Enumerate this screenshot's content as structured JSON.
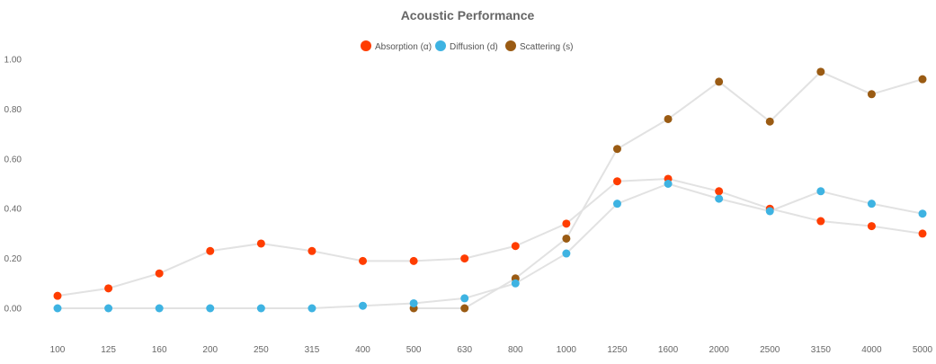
{
  "chart_data": {
    "type": "line",
    "title": "Acoustic Performance",
    "xlabel": "",
    "ylabel": "",
    "categories": [
      "100",
      "125",
      "160",
      "200",
      "250",
      "315",
      "400",
      "500",
      "630",
      "800",
      "1000",
      "1250",
      "1600",
      "2000",
      "2500",
      "3150",
      "4000",
      "5000"
    ],
    "ylim": [
      -0.1,
      1.05
    ],
    "yticks": [
      0.0,
      0.2,
      0.4,
      0.6,
      0.8,
      1.0
    ],
    "ytick_labels": [
      "0.00",
      "0.20",
      "0.40",
      "0.60",
      "0.80",
      "1.00"
    ],
    "legend_position": "top-center",
    "grid": false,
    "line_color": "#e2e2e2",
    "series": [
      {
        "name": "Absorption (α)",
        "color": "#ff3d00",
        "values": [
          0.05,
          0.08,
          0.14,
          0.23,
          0.26,
          0.23,
          0.19,
          0.19,
          0.2,
          0.25,
          0.34,
          0.51,
          0.52,
          0.47,
          0.4,
          0.35,
          0.33,
          0.3
        ]
      },
      {
        "name": "Diffusion (d)",
        "color": "#3eb3e2",
        "values": [
          0.0,
          0.0,
          0.0,
          0.0,
          0.0,
          0.0,
          0.01,
          0.02,
          0.04,
          0.1,
          0.22,
          0.42,
          0.5,
          0.44,
          0.39,
          0.47,
          0.42,
          0.38
        ]
      },
      {
        "name": "Scattering (s)",
        "color": "#9a5b13",
        "values": [
          null,
          null,
          null,
          null,
          null,
          null,
          null,
          0.0,
          0.0,
          0.12,
          0.28,
          0.64,
          0.76,
          0.91,
          0.75,
          0.95,
          0.86,
          0.92
        ]
      }
    ]
  }
}
